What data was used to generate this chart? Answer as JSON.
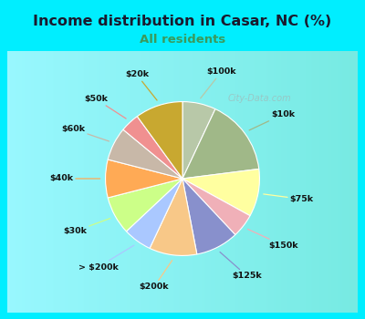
{
  "title": "Income distribution in Casar, NC (%)",
  "subtitle": "All residents",
  "title_color": "#1a1a2e",
  "subtitle_color": "#3a9a5c",
  "background_cyan": "#00EEFF",
  "background_panel": "#e8f5ee",
  "watermark": "City-Data.com",
  "labels": [
    "$100k",
    "$10k",
    "$75k",
    "$150k",
    "$125k",
    "$200k",
    "> $200k",
    "$30k",
    "$40k",
    "$60k",
    "$50k",
    "$20k"
  ],
  "values": [
    7,
    16,
    10,
    5,
    9,
    10,
    6,
    8,
    8,
    7,
    4,
    10
  ],
  "colors": [
    "#b8c8a8",
    "#a0b888",
    "#ffffa0",
    "#f0b0b8",
    "#8890cc",
    "#f8c888",
    "#aac8ff",
    "#ccff88",
    "#ffaa55",
    "#c8b8a8",
    "#f09090",
    "#c8a830"
  ]
}
